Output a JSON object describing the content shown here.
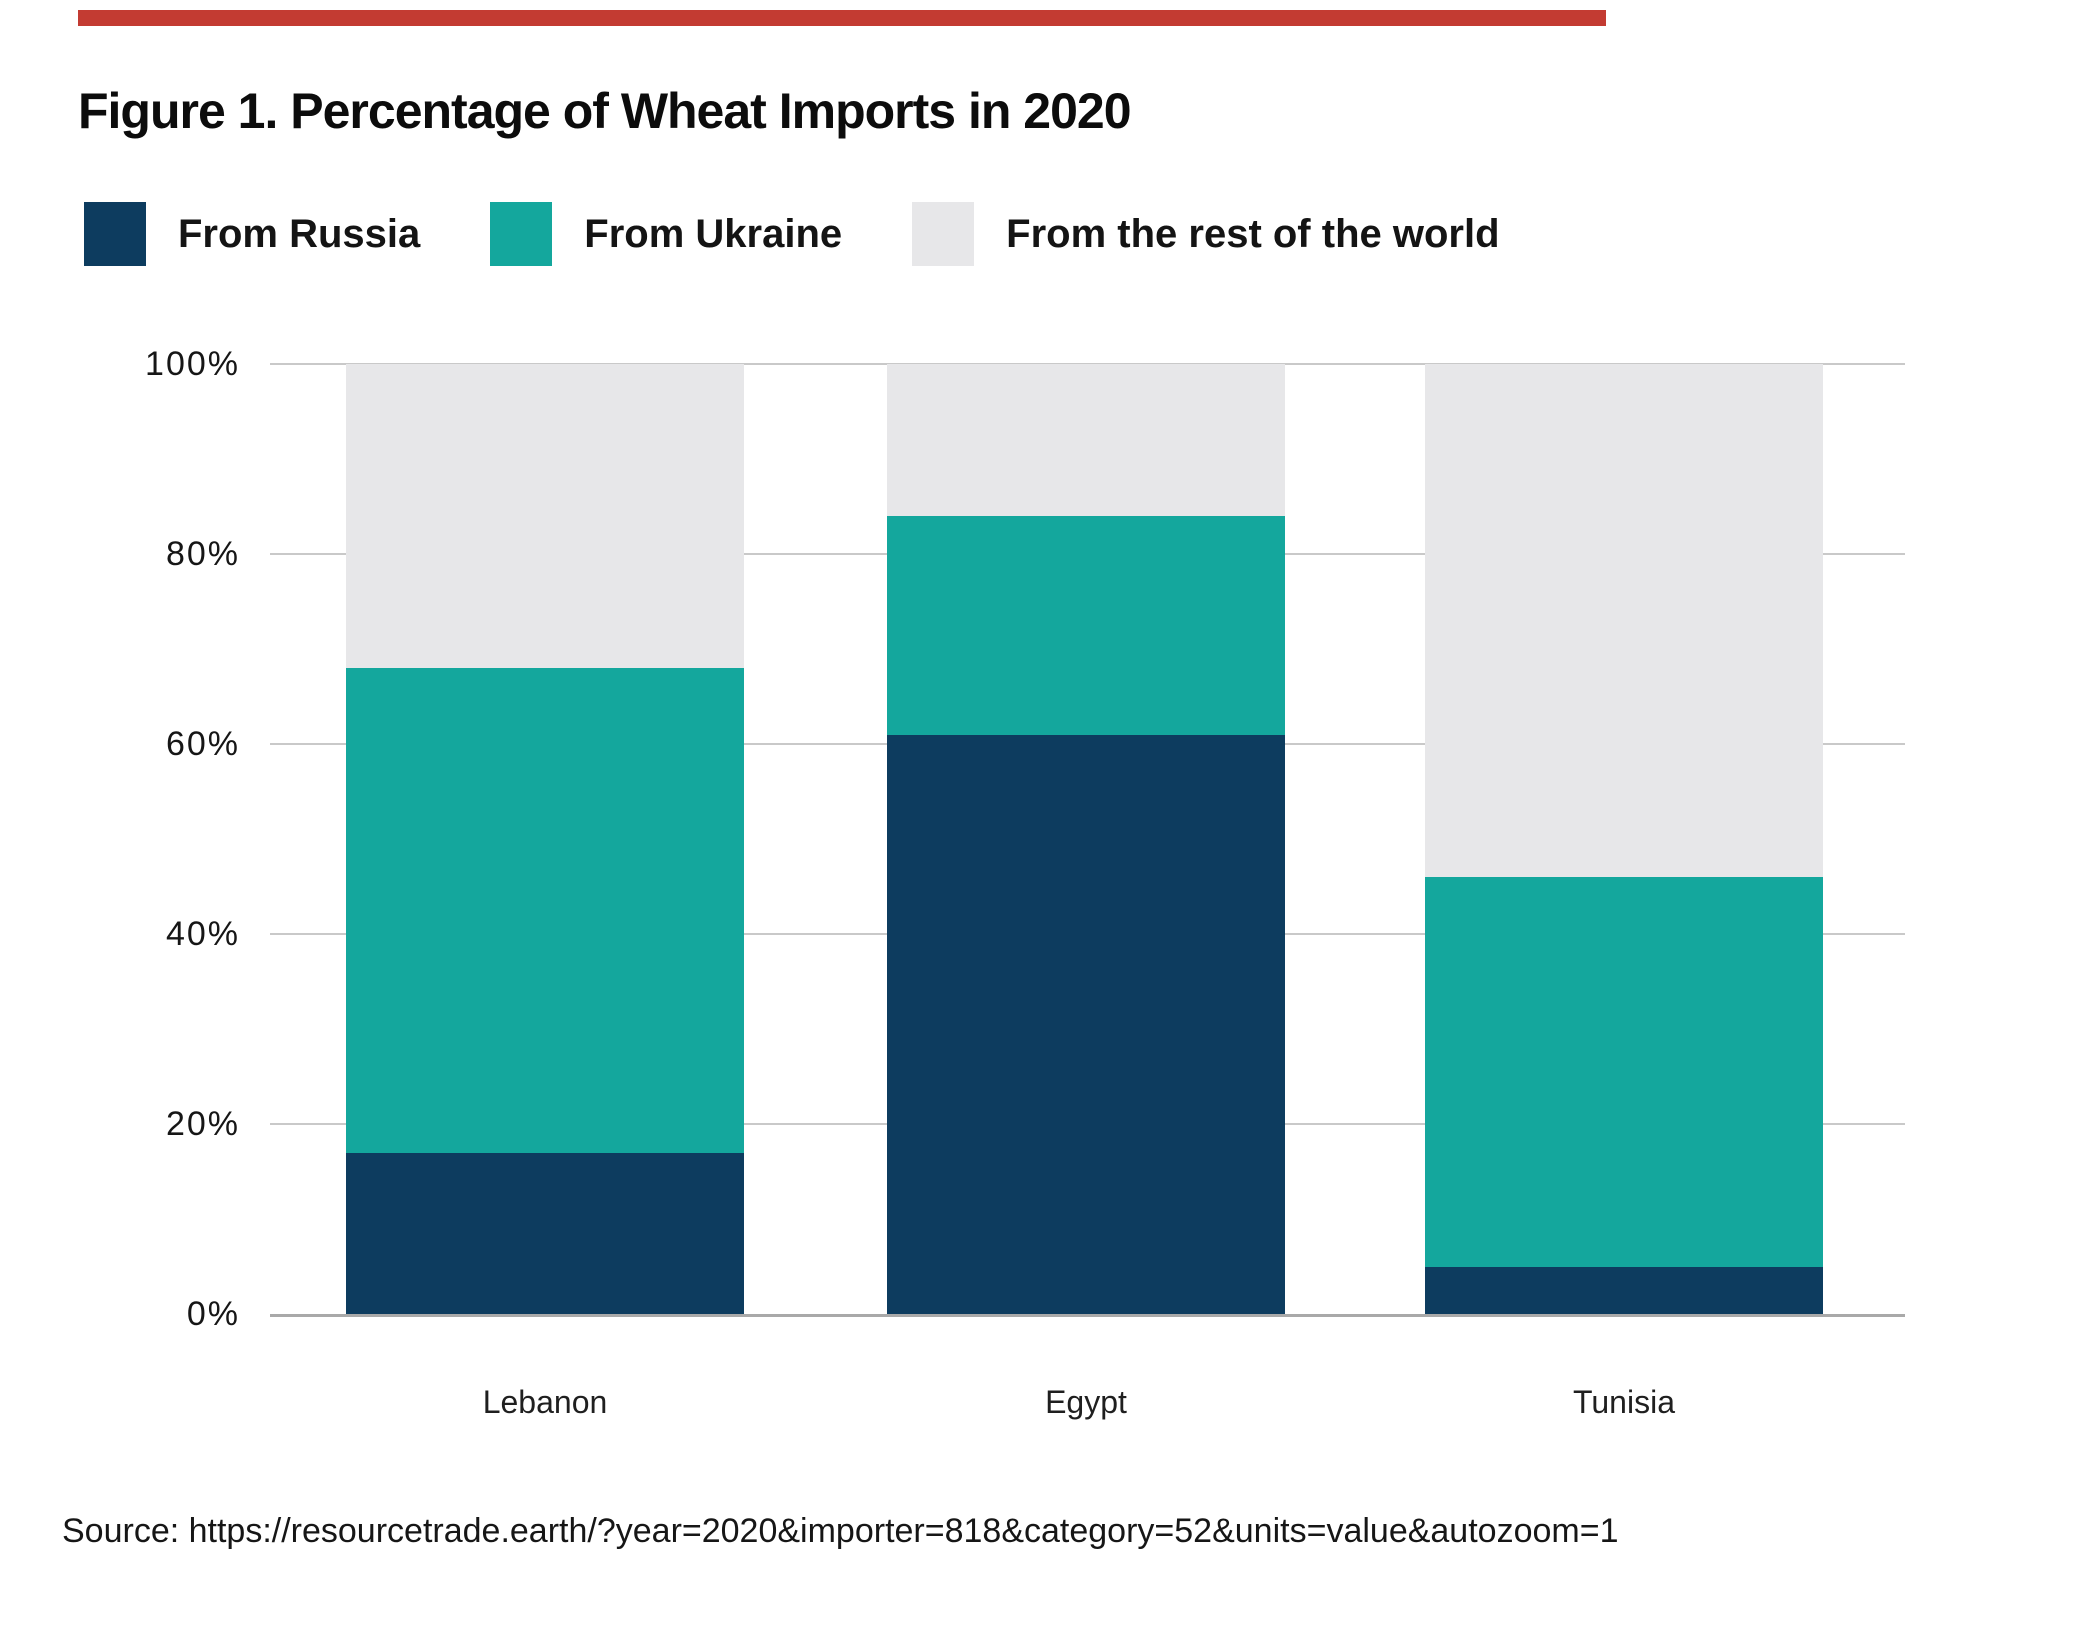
{
  "figure": {
    "title": "Figure 1. Percentage of Wheat Imports in 2020",
    "source": "Source: https://resourcetrade.earth/?year=2020&importer=818&category=52&units=value&autozoom=1",
    "accent_bar_color": "#c33b32"
  },
  "legend": {
    "items": [
      {
        "label": "From Russia",
        "color": "#0d3c5f"
      },
      {
        "label": "From Ukraine",
        "color": "#14a79d"
      },
      {
        "label": "From the rest of the world",
        "color": "#e7e7e9"
      }
    ]
  },
  "chart_data": {
    "type": "bar",
    "stacked": true,
    "title": "Figure 1. Percentage of Wheat Imports in 2020",
    "xlabel": "",
    "ylabel": "",
    "categories": [
      "Lebanon",
      "Egypt",
      "Tunisia"
    ],
    "series": [
      {
        "name": "From Russia",
        "color": "#0d3c5f",
        "values": [
          17,
          61,
          5
        ]
      },
      {
        "name": "From Ukraine",
        "color": "#14a79d",
        "values": [
          51,
          23,
          41
        ]
      },
      {
        "name": "From the rest of the world",
        "color": "#e7e7e9",
        "values": [
          32,
          16,
          54
        ]
      }
    ],
    "ylim": [
      0,
      100
    ],
    "yticks": [
      0,
      20,
      40,
      60,
      80,
      100
    ],
    "ytick_labels": [
      "0%",
      "20%",
      "40%",
      "60%",
      "80%",
      "100%"
    ],
    "grid": "horizontal",
    "gridline_color": "#c9c9c9",
    "axis_line_color": "#a9a9a9",
    "legend_position": "top"
  }
}
